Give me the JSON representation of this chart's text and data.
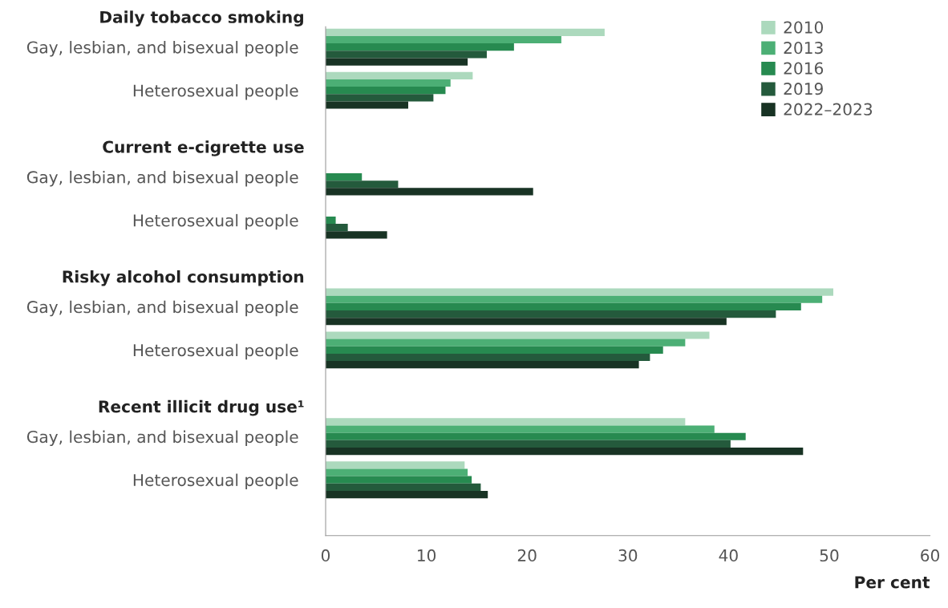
{
  "chart_data": {
    "type": "bar",
    "orientation": "horizontal",
    "categories": [
      "Gay, lesbian, and bisexual people",
      "Heterosexual people",
      "Gay, lesbian, and bisexual people",
      "Heterosexual people",
      "Gay, lesbian, and bisexual people",
      "Heterosexual people",
      "Gay, lesbian, and bisexual people",
      "Heterosexual people"
    ],
    "annotations": [
      "Daily tobacco smoking",
      "Current e-cigrette use",
      "Risky alcohol consumption",
      "Recent illicit drug use¹"
    ],
    "series": [
      {
        "name": "2010",
        "color": "#acd9bd",
        "values": [
          27.7,
          14.6,
          null,
          null,
          50.4,
          38.1,
          35.7,
          13.8
        ]
      },
      {
        "name": "2013",
        "color": "#4caf75",
        "values": [
          23.4,
          12.4,
          null,
          null,
          49.3,
          35.7,
          38.6,
          14.1
        ]
      },
      {
        "name": "2016",
        "color": "#278a50",
        "values": [
          18.7,
          11.9,
          3.6,
          1.0,
          47.2,
          33.5,
          41.7,
          14.5
        ]
      },
      {
        "name": "2019",
        "color": "#245a3c",
        "values": [
          16.0,
          10.7,
          7.2,
          2.2,
          44.7,
          32.2,
          40.2,
          15.4
        ]
      },
      {
        "name": "2022–2023",
        "color": "#183324",
        "values": [
          14.1,
          8.2,
          20.6,
          6.1,
          39.8,
          31.1,
          47.4,
          16.1
        ]
      }
    ],
    "xlabel": "Per cent",
    "xlim": [
      0,
      60
    ],
    "xticks": [
      0,
      10,
      20,
      30,
      40,
      50,
      60
    ],
    "grid": false,
    "legend": "top right"
  }
}
